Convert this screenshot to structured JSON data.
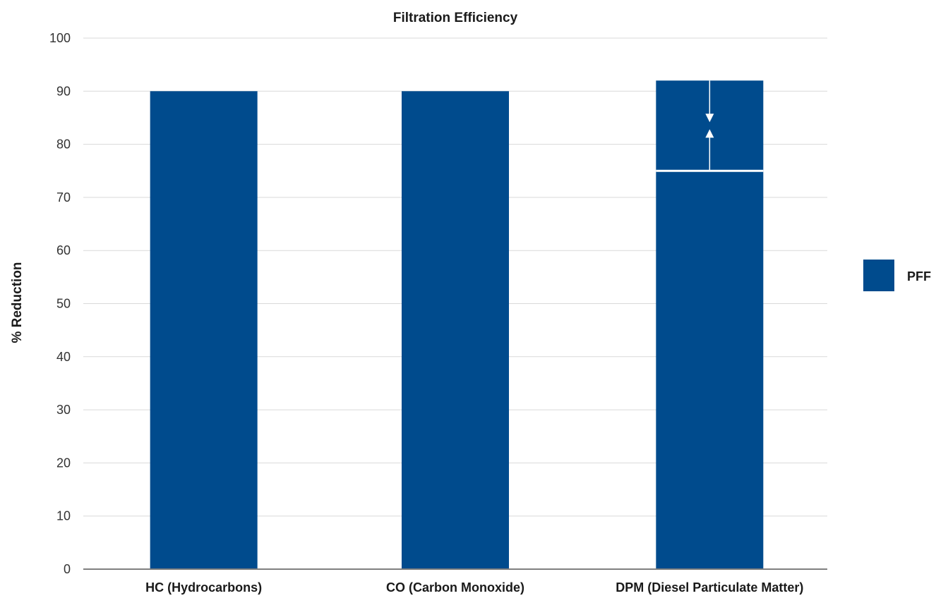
{
  "chart_data": {
    "type": "bar",
    "title": "Filtration Efficiency",
    "xlabel": "",
    "ylabel": "% Reduction",
    "ylim": [
      0,
      100
    ],
    "yticks": [
      0,
      10,
      20,
      30,
      40,
      50,
      60,
      70,
      80,
      90,
      100
    ],
    "categories": [
      "HC (Hydrocarbons)",
      "CO (Carbon Monoxide)",
      "DPM (Diesel Particulate Matter)"
    ],
    "series": [
      {
        "name": "PFF",
        "values": [
          90,
          90,
          92
        ],
        "color": "#004b8d"
      }
    ],
    "range_markers": [
      {
        "category": "DPM (Diesel Particulate Matter)",
        "low": 75,
        "high": 92
      }
    ],
    "grid": true,
    "legend_position": "right"
  }
}
